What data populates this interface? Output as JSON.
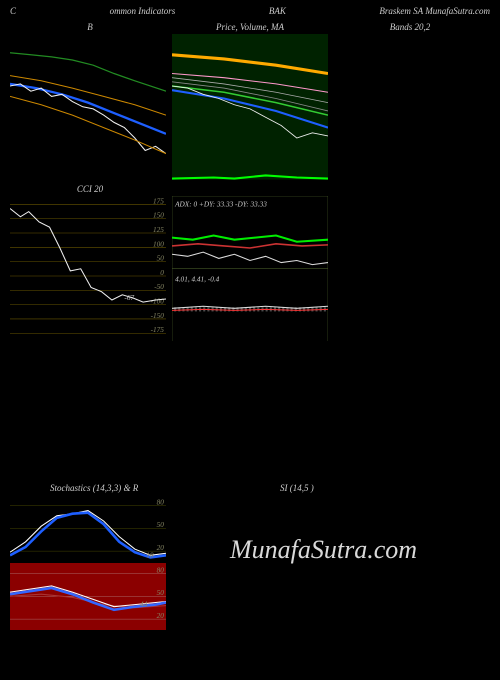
{
  "header": {
    "left": "C",
    "center_left": "ommon  Indicators",
    "center_right": "BAK",
    "right": "Braskem SA MunafaSutra.com"
  },
  "watermark_text": "MunafaSutra.com",
  "row1": {
    "left_title": "B",
    "center_title": "Price, Volume, MA",
    "right_title": "Bands 20,2",
    "price_panel": {
      "bg": "#000000",
      "width": 150,
      "height": 140,
      "lines": {
        "green": {
          "color": "#228b22",
          "width": 1.2,
          "pts": [
            [
              0,
              18
            ],
            [
              20,
              20
            ],
            [
              40,
              22
            ],
            [
              60,
              25
            ],
            [
              80,
              30
            ],
            [
              100,
              38
            ],
            [
              120,
              45
            ],
            [
              150,
              55
            ]
          ]
        },
        "orange_top": {
          "color": "#cc8800",
          "width": 1,
          "pts": [
            [
              0,
              40
            ],
            [
              30,
              45
            ],
            [
              60,
              52
            ],
            [
              90,
              60
            ],
            [
              120,
              68
            ],
            [
              150,
              78
            ]
          ]
        },
        "blue": {
          "color": "#1e5fff",
          "width": 2.2,
          "pts": [
            [
              0,
              48
            ],
            [
              25,
              52
            ],
            [
              50,
              58
            ],
            [
              75,
              66
            ],
            [
              100,
              76
            ],
            [
              125,
              86
            ],
            [
              150,
              96
            ]
          ]
        },
        "white": {
          "color": "#f0f0f0",
          "width": 1,
          "pts": [
            [
              0,
              50
            ],
            [
              10,
              48
            ],
            [
              20,
              55
            ],
            [
              30,
              52
            ],
            [
              40,
              60
            ],
            [
              50,
              58
            ],
            [
              60,
              65
            ],
            [
              70,
              70
            ],
            [
              80,
              72
            ],
            [
              90,
              78
            ],
            [
              100,
              85
            ],
            [
              110,
              90
            ],
            [
              120,
              100
            ],
            [
              130,
              112
            ],
            [
              140,
              108
            ],
            [
              150,
              115
            ]
          ]
        },
        "orange_bot": {
          "color": "#cc8800",
          "width": 1,
          "pts": [
            [
              0,
              60
            ],
            [
              30,
              68
            ],
            [
              60,
              78
            ],
            [
              90,
              90
            ],
            [
              120,
              102
            ],
            [
              150,
              115
            ]
          ]
        }
      }
    },
    "ma_panel": {
      "bg": "#002200",
      "width": 150,
      "height": 140,
      "lines": {
        "orange_thick": {
          "color": "#ffaa00",
          "width": 3,
          "pts": [
            [
              0,
              20
            ],
            [
              50,
              24
            ],
            [
              100,
              30
            ],
            [
              150,
              38
            ]
          ]
        },
        "pink": {
          "color": "#ff99cc",
          "width": 1,
          "pts": [
            [
              0,
              38
            ],
            [
              50,
              42
            ],
            [
              100,
              48
            ],
            [
              150,
              56
            ]
          ]
        },
        "gray1": {
          "color": "#aaaaaa",
          "width": 0.8,
          "pts": [
            [
              0,
              42
            ],
            [
              50,
              48
            ],
            [
              100,
              56
            ],
            [
              150,
              66
            ]
          ]
        },
        "gray2": {
          "color": "#888888",
          "width": 0.8,
          "pts": [
            [
              0,
              46
            ],
            [
              50,
              52
            ],
            [
              100,
              62
            ],
            [
              150,
              74
            ]
          ]
        },
        "green": {
          "color": "#33cc33",
          "width": 1.5,
          "pts": [
            [
              0,
              50
            ],
            [
              50,
              56
            ],
            [
              100,
              66
            ],
            [
              150,
              78
            ]
          ]
        },
        "blue": {
          "color": "#1e5fff",
          "width": 2,
          "pts": [
            [
              0,
              54
            ],
            [
              50,
              62
            ],
            [
              100,
              74
            ],
            [
              150,
              90
            ]
          ]
        },
        "white": {
          "color": "#f0f0f0",
          "width": 0.8,
          "pts": [
            [
              0,
              50
            ],
            [
              15,
              52
            ],
            [
              30,
              58
            ],
            [
              45,
              62
            ],
            [
              60,
              68
            ],
            [
              75,
              72
            ],
            [
              90,
              80
            ],
            [
              105,
              88
            ],
            [
              120,
              100
            ],
            [
              135,
              95
            ],
            [
              150,
              98
            ]
          ]
        },
        "bottom_green": {
          "color": "#00ff00",
          "width": 2,
          "pts": [
            [
              0,
              139
            ],
            [
              40,
              138
            ],
            [
              60,
              139
            ],
            [
              90,
              136
            ],
            [
              120,
              138
            ],
            [
              150,
              139
            ]
          ]
        }
      }
    }
  },
  "row2": {
    "cci": {
      "title": "CCI 20",
      "bg": "#000000",
      "width": 150,
      "height": 140,
      "grid_color": "#665500",
      "grid_levels": [
        175,
        150,
        125,
        100,
        50,
        0,
        "-50",
        "-100",
        "-150",
        "-175"
      ],
      "value_label": "-67",
      "line": {
        "color": "#f0f0f0",
        "width": 1,
        "pts": [
          [
            0,
            12
          ],
          [
            10,
            20
          ],
          [
            18,
            15
          ],
          [
            28,
            25
          ],
          [
            38,
            30
          ],
          [
            48,
            50
          ],
          [
            58,
            72
          ],
          [
            68,
            70
          ],
          [
            78,
            88
          ],
          [
            88,
            92
          ],
          [
            98,
            100
          ],
          [
            108,
            95
          ],
          [
            118,
            98
          ],
          [
            128,
            102
          ],
          [
            140,
            100
          ],
          [
            150,
            99
          ]
        ]
      }
    },
    "adx_macd": {
      "adx_title": "ADX: 0  +DY: 33.33 -DY: 33.33",
      "macd_title": "4.01, 4.41, -0.4",
      "bg": "#000000",
      "width": 150,
      "height": 140,
      "border": "#556b2f",
      "adx": {
        "green": {
          "color": "#00ee00",
          "width": 2,
          "pts": [
            [
              0,
              40
            ],
            [
              20,
              42
            ],
            [
              40,
              38
            ],
            [
              60,
              42
            ],
            [
              80,
              40
            ],
            [
              100,
              38
            ],
            [
              120,
              44
            ],
            [
              150,
              42
            ]
          ]
        },
        "red": {
          "color": "#cc3333",
          "width": 1.5,
          "pts": [
            [
              0,
              48
            ],
            [
              25,
              46
            ],
            [
              50,
              48
            ],
            [
              75,
              50
            ],
            [
              100,
              46
            ],
            [
              125,
              48
            ],
            [
              150,
              47
            ]
          ]
        },
        "white": {
          "color": "#dddddd",
          "width": 1,
          "pts": [
            [
              0,
              56
            ],
            [
              15,
              58
            ],
            [
              30,
              54
            ],
            [
              45,
              60
            ],
            [
              60,
              56
            ],
            [
              75,
              62
            ],
            [
              90,
              58
            ],
            [
              105,
              64
            ],
            [
              120,
              62
            ],
            [
              135,
              66
            ],
            [
              150,
              64
            ]
          ]
        }
      },
      "macd": {
        "white": {
          "color": "#dddddd",
          "width": 1,
          "pts": [
            [
              0,
              108
            ],
            [
              30,
              106
            ],
            [
              60,
              108
            ],
            [
              90,
              106
            ],
            [
              120,
              108
            ],
            [
              150,
              106
            ]
          ]
        },
        "red": {
          "color": "#ff3333",
          "width": 1,
          "pts": [
            [
              0,
              110
            ],
            [
              30,
              109
            ],
            [
              60,
              110
            ],
            [
              90,
              109
            ],
            [
              120,
              110
            ],
            [
              150,
              109
            ]
          ]
        },
        "bars": {
          "color": "rgba(255,255,255,0.3)",
          "h": 4
        }
      }
    }
  },
  "row3": {
    "stoch_title": "Stochastics           (14,3,3) & R",
    "rsi_title": "SI                     (14,5                             )",
    "stoch1": {
      "bg": "#000000",
      "width": 150,
      "height": 65,
      "grid": "#444400",
      "levels": [
        80,
        50,
        20
      ],
      "value": "18",
      "white": {
        "color": "#ffffff",
        "width": 1,
        "pts": [
          [
            0,
            55
          ],
          [
            15,
            45
          ],
          [
            30,
            30
          ],
          [
            45,
            20
          ],
          [
            60,
            18
          ],
          [
            75,
            15
          ],
          [
            90,
            25
          ],
          [
            105,
            40
          ],
          [
            120,
            52
          ],
          [
            135,
            58
          ],
          [
            150,
            56
          ]
        ]
      },
      "blue": {
        "color": "#1e5fff",
        "width": 2.5,
        "pts": [
          [
            0,
            58
          ],
          [
            15,
            50
          ],
          [
            30,
            35
          ],
          [
            45,
            22
          ],
          [
            60,
            18
          ],
          [
            75,
            17
          ],
          [
            90,
            28
          ],
          [
            105,
            45
          ],
          [
            120,
            55
          ],
          [
            135,
            60
          ],
          [
            150,
            58
          ]
        ]
      }
    },
    "stoch2": {
      "bg": "#8b0000",
      "width": 150,
      "height": 65,
      "grid": "#aa6666",
      "levels": [
        80,
        50,
        20
      ],
      "value": "44",
      "white": {
        "color": "#ffffff",
        "width": 1,
        "pts": [
          [
            0,
            28
          ],
          [
            20,
            25
          ],
          [
            40,
            22
          ],
          [
            60,
            28
          ],
          [
            80,
            35
          ],
          [
            100,
            42
          ],
          [
            120,
            40
          ],
          [
            140,
            38
          ],
          [
            150,
            37
          ]
        ]
      },
      "blue": {
        "color": "#3366ff",
        "width": 2.5,
        "pts": [
          [
            0,
            30
          ],
          [
            20,
            27
          ],
          [
            40,
            24
          ],
          [
            60,
            30
          ],
          [
            80,
            38
          ],
          [
            100,
            45
          ],
          [
            120,
            42
          ],
          [
            140,
            40
          ],
          [
            150,
            38
          ]
        ]
      },
      "red": {
        "color": "#aa3333",
        "width": 1,
        "pts": [
          [
            0,
            32
          ],
          [
            30,
            30
          ],
          [
            60,
            33
          ],
          [
            90,
            40
          ],
          [
            120,
            43
          ],
          [
            150,
            41
          ]
        ]
      }
    }
  }
}
